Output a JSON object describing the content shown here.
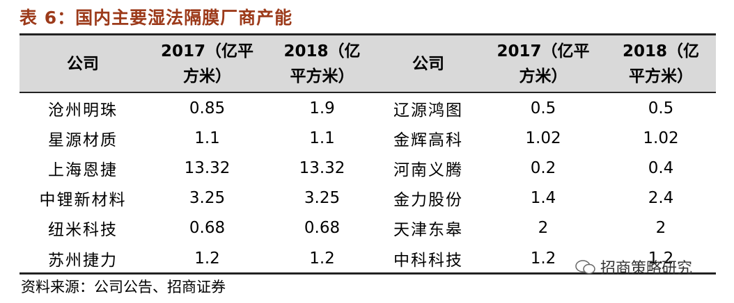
{
  "title": "表 6：国内主要湿法隔膜厂商产能",
  "table": {
    "header": [
      "公司",
      "2017（亿平方米）",
      "2018（亿平方米）",
      "公司",
      "2017（亿平方米）",
      "2018（亿平方米）"
    ],
    "rows": [
      [
        "沧州明珠",
        "0.85",
        "1.9",
        "辽源鸿图",
        "0.5",
        "0.5"
      ],
      [
        "星源材质",
        "1.1",
        "1.1",
        "金辉高科",
        "1.02",
        "1.02"
      ],
      [
        "上海恩捷",
        "13.32",
        "13.32",
        "河南义腾",
        "0.2",
        "0.4"
      ],
      [
        "中锂新材料",
        "3.25",
        "3.25",
        "金力股份",
        "1.4",
        "2.4"
      ],
      [
        "纽米科技",
        "0.68",
        "0.68",
        "天津东皋",
        "2",
        "2"
      ],
      [
        "苏州捷力",
        "1.2",
        "1.2",
        "中科科技",
        "1.2",
        "1.2"
      ]
    ]
  },
  "source": "资料来源：公司公告、招商证券",
  "watermark": "招商策略研究"
}
